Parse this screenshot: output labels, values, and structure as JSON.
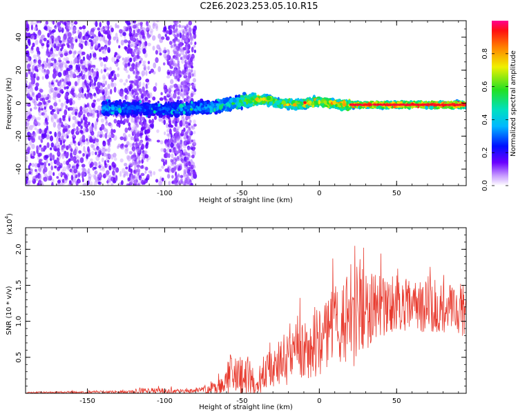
{
  "title": "C2E6.2023.253.05.10.R15",
  "colors": {
    "snr_line": "#e83a2e",
    "spectrum_purple": "#6600dd",
    "spectrum_blue": "#1a1aff",
    "spectrum_cyan": "#00e0d8",
    "spectrum_green": "#22dd22",
    "spectrum_red": "#e81010"
  },
  "chart_data": [
    {
      "type": "heatmap",
      "name": "spectrogram",
      "xlabel": "Height of straight line (km)",
      "ylabel": "Frequency (Hz)",
      "xlim": [
        -190,
        95
      ],
      "ylim": [
        -50,
        50
      ],
      "xticks": [
        -150,
        -100,
        -50,
        0,
        50
      ],
      "yticks": [
        -40,
        -20,
        0,
        20,
        40
      ],
      "colorbar": {
        "label": "Normalized spectral amplitude",
        "range": [
          0,
          1
        ],
        "ticks": [
          0.0,
          0.2,
          0.4,
          0.6,
          0.8
        ],
        "tick_labels": [
          "0.0",
          "0.2",
          "0.4",
          "0.6",
          "0.8"
        ]
      },
      "signal_track": {
        "x": [
          -140,
          -120,
          -100,
          -80,
          -65,
          -55,
          -45,
          -35,
          -25,
          -15,
          0,
          15,
          30,
          50,
          70,
          95
        ],
        "freq": [
          -3,
          -3,
          -4,
          -3,
          -2,
          0,
          2,
          2,
          0,
          -1,
          1,
          -1,
          -1,
          -1,
          -1,
          -1
        ],
        "amplitude": [
          0.25,
          0.2,
          0.2,
          0.25,
          0.3,
          0.4,
          0.6,
          0.65,
          0.6,
          0.65,
          0.7,
          0.75,
          0.8,
          0.85,
          0.9,
          0.92
        ]
      },
      "noise_region_x": [
        -190,
        -80
      ]
    },
    {
      "type": "line",
      "name": "snr",
      "xlabel": "Height of straight line (km)",
      "ylabel": "SNR (10 * v/v)",
      "yscale_label": "(x10",
      "yscale_exp": "4",
      "yscale_close": ")",
      "xlim": [
        -190,
        95
      ],
      "ylim": [
        0,
        2.3
      ],
      "xticks": [
        -150,
        -100,
        -50,
        0,
        50
      ],
      "yticks": [
        0.5,
        1.0,
        1.5,
        2.0
      ],
      "ytick_labels": [
        "0.5",
        "1.0",
        "1.5",
        "2.0"
      ],
      "envelope": {
        "x": [
          -190,
          -120,
          -118,
          -80,
          -62,
          -58,
          -50,
          -45,
          -40,
          -38,
          -32,
          -20,
          -10,
          0,
          10,
          20,
          23,
          30,
          40,
          50,
          60,
          70,
          80,
          90,
          95
        ],
        "mean": [
          0.01,
          0.02,
          0.03,
          0.03,
          0.1,
          0.25,
          0.2,
          0.22,
          0.1,
          0.15,
          0.35,
          0.45,
          0.6,
          0.75,
          0.95,
          1.1,
          1.2,
          1.15,
          1.2,
          1.25,
          1.2,
          1.2,
          1.15,
          1.15,
          1.2
        ],
        "amp": [
          0.01,
          0.02,
          0.05,
          0.03,
          0.12,
          0.3,
          0.3,
          0.3,
          0.1,
          0.15,
          0.3,
          0.35,
          0.45,
          0.5,
          0.55,
          0.65,
          0.9,
          0.55,
          0.45,
          0.4,
          0.35,
          0.35,
          0.35,
          0.4,
          0.45
        ]
      }
    }
  ]
}
